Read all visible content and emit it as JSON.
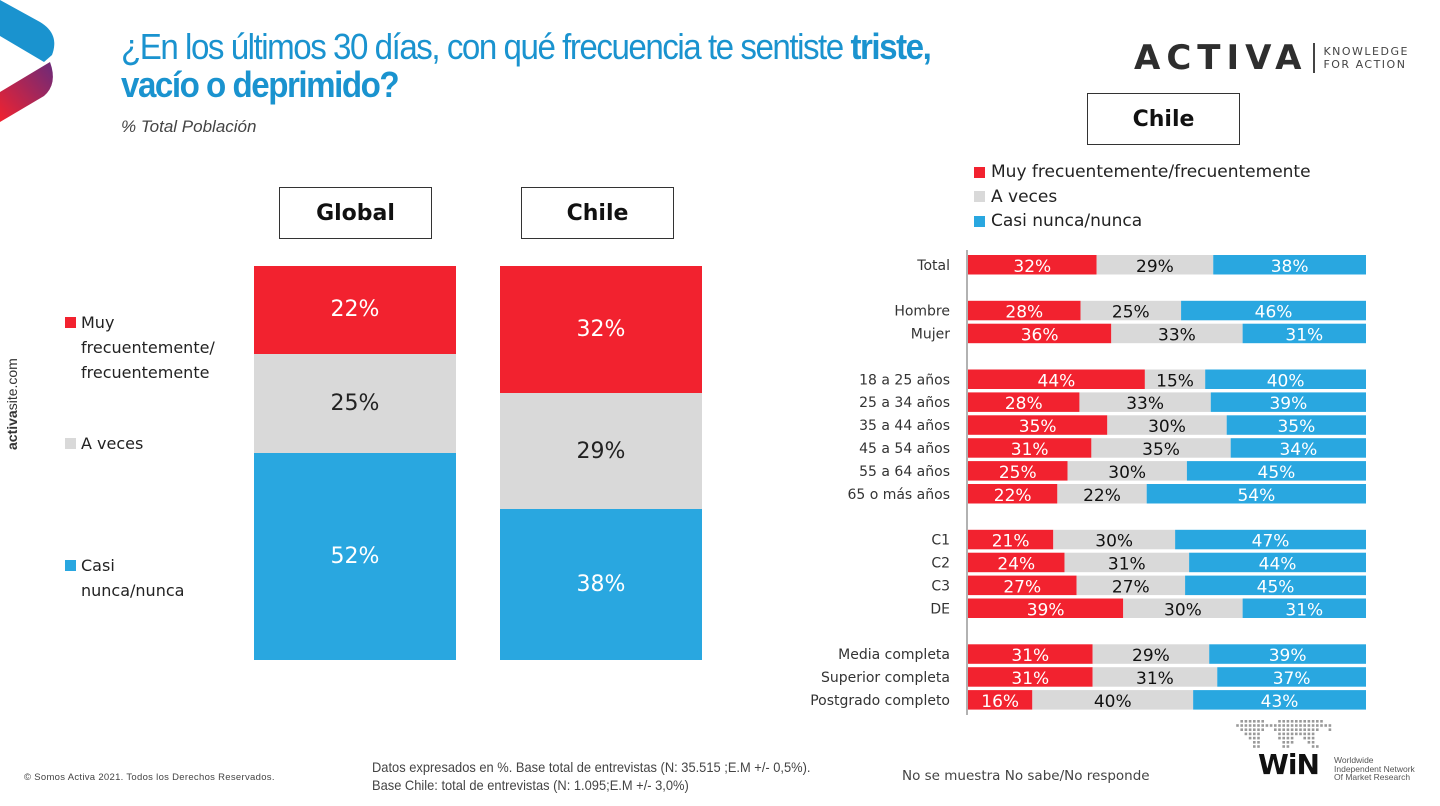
{
  "header": {
    "title_regular": "¿En los últimos 30 días, con qué frecuencia te sentiste ",
    "title_bold_inline": "triste,",
    "title_line2": "vacío o deprimido?",
    "subtitle": "% Total Población"
  },
  "brand": {
    "name": "ACTIVA",
    "tagline_1": "KNOWLEDGE",
    "tagline_2": "FOR ACTION"
  },
  "side_url": {
    "bold": "activa",
    "rest": "site.com"
  },
  "colors": {
    "frequent": "#f2222f",
    "sometimes": "#d9d9d9",
    "rarely": "#29a7e0",
    "title": "#1a93cf"
  },
  "left_legend": [
    {
      "label": "Muy frecuentemente/ frecuentemente",
      "color": "#f2222f"
    },
    {
      "label": "A veces",
      "color": "#d9d9d9"
    },
    {
      "label": "Casi nunca/nunca",
      "color": "#29a7e0"
    }
  ],
  "right_legend": [
    {
      "label": "Muy frecuentemente/frecuentemente",
      "color": "#f2222f"
    },
    {
      "label": "A veces",
      "color": "#d9d9d9"
    },
    {
      "label": "Casi nunca/nunca",
      "color": "#29a7e0"
    }
  ],
  "panel_labels": {
    "global": "Global",
    "chile_left": "Chile",
    "chile_right": "Chile"
  },
  "chart_data": [
    {
      "type": "bar",
      "stacked": true,
      "orientation": "vertical",
      "title": "",
      "categories": [
        "Global",
        "Chile"
      ],
      "series": [
        {
          "name": "Muy frecuentemente/frecuentemente",
          "values": [
            22,
            32
          ],
          "labels": [
            "22%",
            "32%"
          ]
        },
        {
          "name": "A veces",
          "values": [
            25,
            29
          ],
          "labels": [
            "25%",
            "29%"
          ]
        },
        {
          "name": "Casi nunca/nunca",
          "values": [
            52,
            38
          ],
          "labels": [
            "52%",
            "38%"
          ]
        }
      ],
      "ylabel": "%",
      "legend": "left",
      "grid": false
    },
    {
      "type": "bar",
      "stacked": true,
      "orientation": "horizontal",
      "title": "Chile",
      "groups": [
        [
          "Total"
        ],
        [
          "Hombre",
          "Mujer"
        ],
        [
          "18 a 25 años",
          "25 a 34 años",
          "35 a 44 años",
          "45 a 54 años",
          "55 a 64 años",
          "65 o más años"
        ],
        [
          "C1",
          "C2",
          "C3",
          "DE"
        ],
        [
          "Media completa",
          "Superior completa",
          "Postgrado completo"
        ]
      ],
      "categories": [
        "Total",
        "Hombre",
        "Mujer",
        "18 a 25 años",
        "25 a 34 años",
        "35 a 44 años",
        "45 a 54 años",
        "55 a 64 años",
        "65 o más años",
        "C1",
        "C2",
        "C3",
        "DE",
        "Media completa",
        "Superior completa",
        "Postgrado completo"
      ],
      "series": [
        {
          "name": "Muy frecuentemente/frecuentemente",
          "values": [
            32,
            28,
            36,
            44,
            28,
            35,
            31,
            25,
            22,
            21,
            24,
            27,
            39,
            31,
            31,
            16
          ]
        },
        {
          "name": "A veces",
          "values": [
            29,
            25,
            33,
            15,
            33,
            30,
            35,
            30,
            22,
            30,
            31,
            27,
            30,
            29,
            31,
            40
          ]
        },
        {
          "name": "Casi nunca/nunca",
          "values": [
            38,
            46,
            31,
            40,
            39,
            35,
            34,
            45,
            54,
            47,
            44,
            45,
            31,
            39,
            37,
            43
          ]
        }
      ],
      "xlim": [
        0,
        100
      ],
      "legend": "top-left",
      "grid": false
    }
  ],
  "footer": {
    "copyright": "© Somos Activa 2021. Todos los Derechos Reservados.",
    "note_line1": "Datos expresados en %. Base total de entrevistas (N: 35.515 ;E.M +/- 0,5%).",
    "note_line2": "Base Chile: total de entrevistas (N: 1.095;E.M +/- 3,0%)",
    "no_response_note": "No se muestra No sabe/No responde",
    "win_name": "WiN",
    "win_tag_1": "Worldwide",
    "win_tag_2": "Independent Network",
    "win_tag_3": "Of Market Research"
  }
}
